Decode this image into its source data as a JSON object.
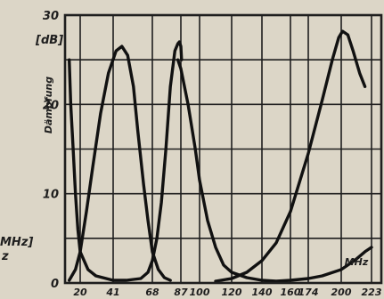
{
  "chart_data": {
    "type": "line",
    "ylabel": "Dämpfung",
    "yunit": "[dB]",
    "xunit": "MHz",
    "left_fragment": [
      "MHz]",
      "z"
    ],
    "ylim": [
      0,
      30
    ],
    "y_ticks": [
      0,
      10,
      20,
      30
    ],
    "y_minor_step": 5,
    "x_ticks": [
      "20",
      "41",
      "68",
      "87",
      "100",
      "120",
      "140",
      "160",
      "174",
      "200",
      "223"
    ],
    "grid": true,
    "series": [
      {
        "points": [
          [
            13,
            25
          ],
          [
            14,
            20
          ],
          [
            15.5,
            15
          ],
          [
            17,
            10
          ],
          [
            18.5,
            6
          ],
          [
            20,
            3.5
          ],
          [
            25,
            1.5
          ],
          [
            30,
            0.8
          ],
          [
            41,
            0.3
          ],
          [
            50,
            0.3
          ],
          [
            60,
            0.5
          ],
          [
            65,
            1.2
          ],
          [
            68,
            2.5
          ],
          [
            71,
            5
          ],
          [
            74,
            9
          ],
          [
            77,
            15
          ],
          [
            80,
            22
          ],
          [
            83,
            26
          ],
          [
            85,
            26.8
          ],
          [
            86,
            27
          ],
          [
            87,
            26.5
          ],
          [
            87.5,
            25
          ]
        ]
      },
      {
        "points": [
          [
            13,
            0.3
          ],
          [
            17,
            1.5
          ],
          [
            20,
            3.5
          ],
          [
            24,
            8
          ],
          [
            28,
            13
          ],
          [
            33,
            19
          ],
          [
            38,
            23.5
          ],
          [
            43,
            26
          ],
          [
            47,
            26.5
          ],
          [
            51,
            25.5
          ],
          [
            55,
            22
          ],
          [
            58,
            17
          ],
          [
            62,
            11
          ],
          [
            65,
            7
          ],
          [
            68,
            3.5
          ],
          [
            72,
            1.5
          ],
          [
            76,
            0.6
          ],
          [
            80,
            0.3
          ]
        ]
      },
      {
        "points": [
          [
            85,
            25
          ],
          [
            87,
            24
          ],
          [
            92,
            20
          ],
          [
            97,
            15
          ],
          [
            100,
            11.5
          ],
          [
            105,
            7
          ],
          [
            110,
            4
          ],
          [
            115,
            2
          ],
          [
            120,
            1.2
          ],
          [
            130,
            0.6
          ],
          [
            140,
            0.3
          ],
          [
            150,
            0.2
          ],
          [
            160,
            0.3
          ],
          [
            174,
            0.5
          ],
          [
            185,
            0.8
          ],
          [
            200,
            1.5
          ],
          [
            210,
            2.5
          ],
          [
            218,
            3.5
          ],
          [
            223,
            4
          ]
        ]
      },
      {
        "points": [
          [
            110,
            0.2
          ],
          [
            120,
            0.5
          ],
          [
            130,
            1.2
          ],
          [
            140,
            2.5
          ],
          [
            150,
            4.5
          ],
          [
            160,
            8
          ],
          [
            174,
            14.5
          ],
          [
            185,
            20.5
          ],
          [
            193,
            25
          ],
          [
            198,
            27.5
          ],
          [
            201,
            28.2
          ],
          [
            205,
            27.8
          ],
          [
            209,
            26
          ],
          [
            214,
            23.5
          ],
          [
            218,
            22
          ]
        ]
      }
    ]
  }
}
